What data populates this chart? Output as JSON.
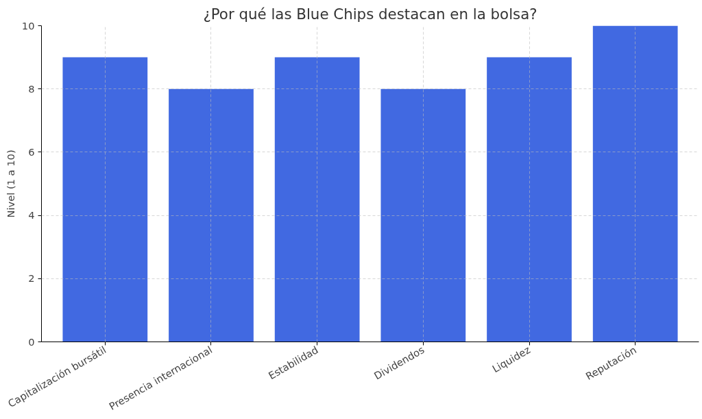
{
  "chart_data": {
    "type": "bar",
    "title": "¿Por qué las Blue Chips destacan en la bolsa?",
    "ylabel": "Nivel (1 a 10)",
    "categories": [
      "Capitalización bursátil",
      "Presencia internacional",
      "Estabilidad",
      "Dividendos",
      "Liquidez",
      "Reputación"
    ],
    "values": [
      9,
      8,
      9,
      8,
      9,
      10
    ],
    "color": "#4169e1",
    "ylim": [
      0,
      10
    ],
    "yticks": [
      0,
      2,
      4,
      6,
      8,
      10
    ],
    "grid": true,
    "line_style": "dashed"
  }
}
